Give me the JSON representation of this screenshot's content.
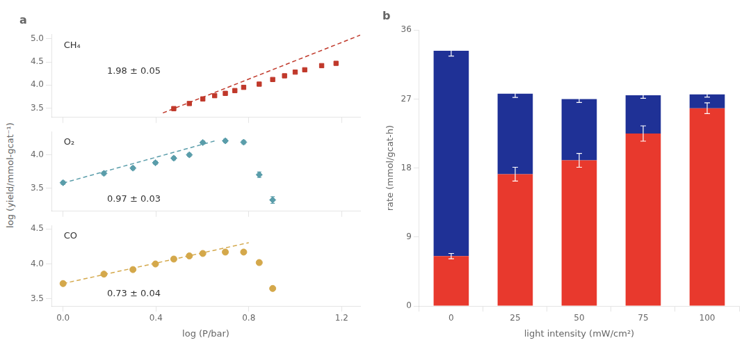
{
  "chart_data": [
    {
      "type": "scatter",
      "title": "a",
      "annotations": [
        "CH₄",
        "1.98 ± 0.05"
      ],
      "series": [
        {
          "type": "scatter",
          "color": "#c0392b",
          "marker": "square",
          "x": [
            0.477,
            0.544,
            0.602,
            0.653,
            0.699,
            0.74,
            0.778,
            0.845,
            0.903,
            0.954,
            1.0,
            1.041,
            1.114,
            1.176
          ],
          "values": [
            3.49,
            3.6,
            3.7,
            3.77,
            3.82,
            3.88,
            3.95,
            4.02,
            4.12,
            4.2,
            4.28,
            4.33,
            4.42,
            4.47
          ],
          "errors": [
            0.04,
            0.025,
            0.025,
            0.025,
            0.025,
            0.025,
            0.025,
            0.025,
            0.025,
            0.025,
            0.025,
            0.025,
            0.025,
            0.035
          ]
        },
        {
          "type": "line",
          "color": "#c0392b",
          "line_style": "dashed",
          "x": [
            0.43,
            1.28
          ],
          "values": [
            3.3964,
            5.0794
          ]
        }
      ],
      "xlim": [
        -0.05,
        1.28
      ],
      "xticks": [
        {
          "value": 0,
          "label": "0.0"
        },
        0.4,
        0.8,
        1.2
      ],
      "ylim": [
        3.3,
        5.1
      ],
      "yticks": [
        3.5,
        {
          "value": 4,
          "label": "4.0"
        },
        4.5,
        {
          "value": 5,
          "label": "5.0"
        }
      ],
      "grid": false,
      "tick_labels": "y"
    },
    {
      "type": "scatter",
      "annotations": [
        "O₂",
        "0.97 ± 0.03"
      ],
      "ylabel": "log (yield/mmol-gcat⁻¹)",
      "series": [
        {
          "type": "scatter",
          "color": "#5a9daa",
          "marker": "diamond",
          "x": [
            0.0,
            0.176,
            0.301,
            0.398,
            0.477,
            0.544,
            0.602,
            0.699,
            0.778,
            0.845,
            0.903
          ],
          "values": [
            3.58,
            3.72,
            3.8,
            3.88,
            3.95,
            4.0,
            4.185,
            4.21,
            4.19,
            3.7,
            3.32
          ],
          "errors": [
            0.025,
            0.025,
            0.025,
            0.025,
            0.025,
            0.025,
            0.025,
            0.025,
            0.025,
            0.04,
            0.05
          ]
        },
        {
          "type": "line",
          "color": "#5a9daa",
          "line_style": "dashed",
          "x": [
            0.0,
            0.66
          ],
          "values": [
            3.575,
            4.2152
          ]
        }
      ],
      "xlim": [
        -0.05,
        1.28
      ],
      "xticks": [
        {
          "value": 0,
          "label": "0.0"
        },
        0.4,
        0.8,
        1.2
      ],
      "ylim": [
        3.15,
        4.35
      ],
      "yticks": [
        3.5,
        {
          "value": 4,
          "label": "4.0"
        }
      ],
      "grid": false,
      "tick_labels": "y"
    },
    {
      "type": "scatter",
      "annotations": [
        "CO",
        "0.73 ± 0.04"
      ],
      "xlabel": "log (P/bar)",
      "series": [
        {
          "type": "scatter",
          "color": "#d4a84b",
          "marker": "circle",
          "x": [
            0.0,
            0.176,
            0.301,
            0.398,
            0.477,
            0.544,
            0.602,
            0.699,
            0.778,
            0.845,
            0.903
          ],
          "values": [
            3.72,
            3.855,
            3.92,
            4.0,
            4.07,
            4.115,
            4.15,
            4.17,
            4.17,
            4.02,
            3.65
          ],
          "errors": [
            0.025,
            0.025,
            0.025,
            0.025,
            0.025,
            0.025,
            0.025,
            0.025,
            0.025,
            0.03,
            0.03
          ]
        },
        {
          "type": "line",
          "color": "#d4a84b",
          "line_style": "dashed",
          "x": [
            0.0,
            0.8
          ],
          "values": [
            3.72,
            4.304
          ]
        }
      ],
      "xlim": [
        -0.05,
        1.28
      ],
      "xticks": [
        {
          "value": 0,
          "label": "0.0"
        },
        0.4,
        0.8,
        1.2
      ],
      "ylim": [
        3.4,
        4.55
      ],
      "yticks": [
        3.5,
        {
          "value": 4,
          "label": "4.0"
        },
        4.5
      ],
      "grid": false
    },
    {
      "type": "bar",
      "title": "b",
      "stacked": true,
      "categories": [
        "0",
        "25",
        "50",
        "75",
        "100"
      ],
      "series": [
        {
          "color": "#e8392d",
          "values": [
            6.5,
            17.2,
            19.0,
            22.5,
            25.8
          ],
          "errors": [
            0.35,
            0.9,
            0.9,
            1.0,
            0.7
          ]
        },
        {
          "color": "#1f3196",
          "values": [
            26.8,
            10.5,
            8.0,
            5.0,
            1.8
          ],
          "errors": [
            0.7,
            0.5,
            0.45,
            0.4,
            0.35
          ]
        }
      ],
      "xlabel": "light intensity (mW/cm²)",
      "ylabel": "rate (mmol/gcat-h)",
      "ylim": [
        0,
        36
      ],
      "yticks": [
        0,
        9,
        18,
        27,
        36
      ],
      "grid": false
    }
  ]
}
